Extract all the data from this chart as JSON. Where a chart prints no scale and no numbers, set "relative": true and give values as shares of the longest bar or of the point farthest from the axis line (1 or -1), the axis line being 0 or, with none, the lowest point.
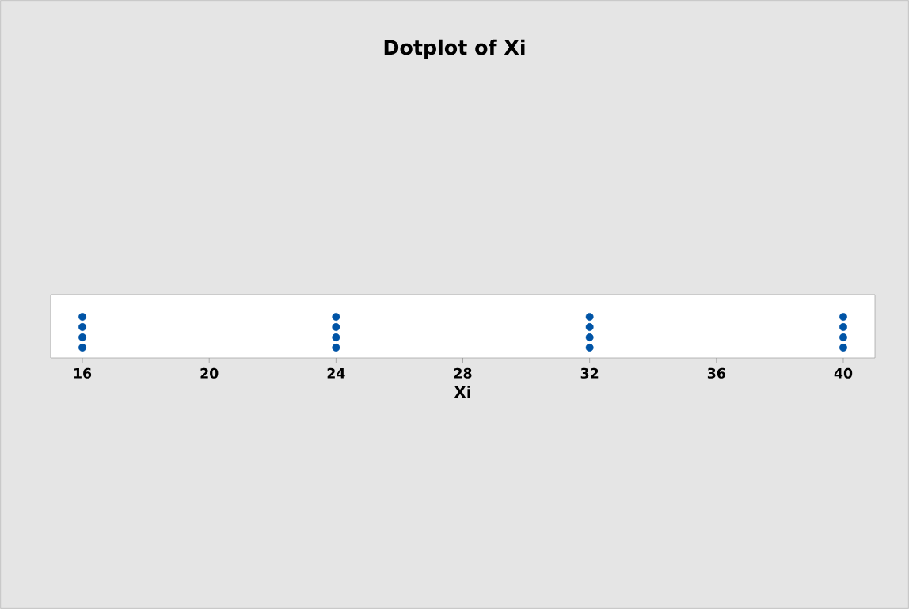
{
  "chart_data": {
    "type": "scatter",
    "title": "Dotplot of Xi",
    "xlabel": "Xi",
    "x": [
      16,
      16,
      16,
      16,
      24,
      24,
      24,
      24,
      32,
      32,
      32,
      32,
      40,
      40,
      40,
      40
    ],
    "series": [
      {
        "color": "#0054a6",
        "values": [
          0.25,
          0.5,
          0.75,
          1,
          0.25,
          0.5,
          0.75,
          1,
          0.25,
          0.5,
          0.75,
          1,
          0.25,
          0.5,
          0.75,
          1
        ]
      }
    ],
    "relative": true,
    "marker": "circle",
    "tick_labels": "x",
    "xlim": [
      15,
      41
    ],
    "xticks": [
      16,
      20,
      24,
      28,
      32,
      36,
      40
    ]
  }
}
